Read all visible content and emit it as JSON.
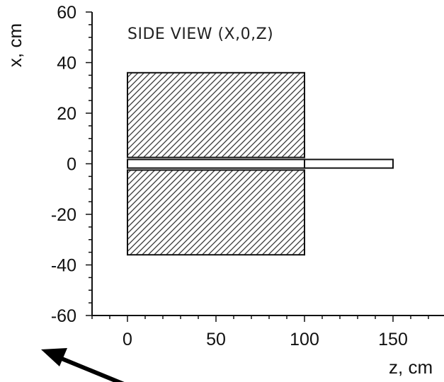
{
  "figure": {
    "title": "SIDE VIEW (X,0,Z)",
    "xlabel": "z, cm",
    "ylabel": "x, cm",
    "x_axis": {
      "min": -20,
      "max": 175,
      "ticks": [
        0,
        50,
        100,
        150
      ],
      "tick_labels": [
        "0",
        "50",
        "100",
        "150"
      ],
      "minor_step": 10
    },
    "y_axis": {
      "min": -60,
      "max": 60,
      "ticks": [
        60,
        40,
        20,
        0,
        -20,
        -40,
        -60
      ],
      "tick_labels": [
        "60",
        "40",
        "20",
        "0",
        "-20",
        "-40",
        "-60"
      ],
      "minor_step": 5
    }
  },
  "shapes": [
    {
      "name": "upper-hatched-block",
      "kind": "hatched",
      "z": [
        0,
        100
      ],
      "x": [
        2.5,
        36
      ]
    },
    {
      "name": "lower-hatched-block",
      "kind": "hatched",
      "z": [
        0,
        100
      ],
      "x": [
        -36,
        -2.5
      ]
    },
    {
      "name": "central-channel",
      "kind": "outline",
      "z": [
        0,
        100
      ],
      "x": [
        -1.7,
        1.7
      ]
    },
    {
      "name": "extension-tube",
      "kind": "outline",
      "z": [
        100,
        150
      ],
      "x": [
        -1.7,
        1.7
      ]
    }
  ],
  "colors": {
    "ink": "#111111",
    "hatch": "#2a2a2a",
    "background": "#ffffff"
  },
  "annotation": {
    "arrow_icon": "arrow-up-left-icon"
  }
}
